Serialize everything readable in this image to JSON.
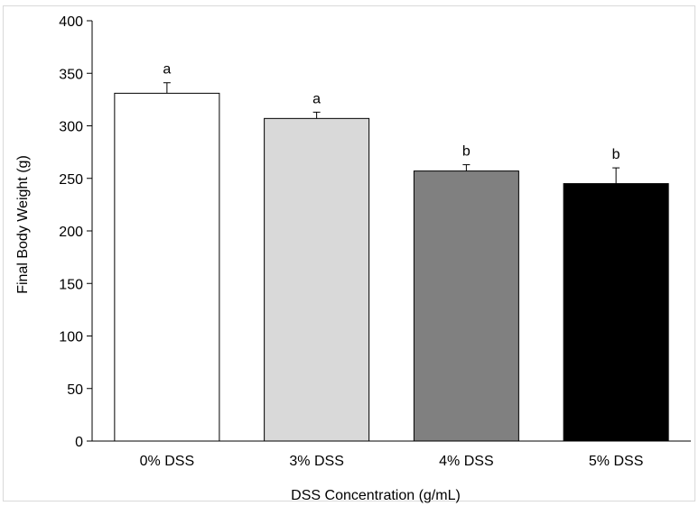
{
  "chart_data": {
    "type": "bar",
    "title": "",
    "xlabel": "DSS Concentration (g/mL)",
    "ylabel": "Final Body Weight (g)",
    "ylim": [
      0,
      400
    ],
    "yticks": [
      0,
      50,
      100,
      150,
      200,
      250,
      300,
      350,
      400
    ],
    "grid": false,
    "legend": "none",
    "categories": [
      "0% DSS",
      "3% DSS",
      "4% DSS",
      "5% DSS"
    ],
    "values": [
      331,
      307,
      257,
      245
    ],
    "error_upper": [
      10,
      6,
      6,
      15
    ],
    "significance_labels": [
      "a",
      "a",
      "b",
      "b"
    ],
    "bar_colors": [
      "#ffffff",
      "#d9d9d9",
      "#808080",
      "#000000"
    ],
    "bar_edge_color": "#000000"
  }
}
